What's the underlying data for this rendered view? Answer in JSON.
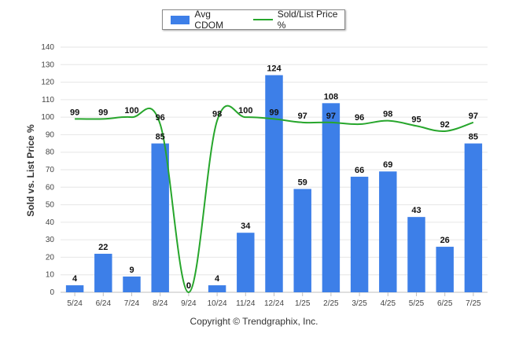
{
  "chart_data": {
    "type": "bar",
    "categories": [
      "5/24",
      "6/24",
      "7/24",
      "8/24",
      "9/24",
      "10/24",
      "11/24",
      "12/24",
      "1/25",
      "2/25",
      "3/25",
      "4/25",
      "5/25",
      "6/25",
      "7/25"
    ],
    "series": [
      {
        "name": "Avg CDOM",
        "type": "bar",
        "color": "#3d7fe8",
        "values": [
          4,
          22,
          9,
          85,
          0,
          4,
          34,
          124,
          59,
          108,
          66,
          69,
          43,
          26,
          85
        ]
      },
      {
        "name": "Sold/List Price %",
        "type": "line",
        "color": "#27a62c",
        "values": [
          99,
          99,
          100,
          96,
          0,
          98,
          100,
          99,
          97,
          97,
          96,
          98,
          95,
          92,
          97
        ]
      }
    ],
    "ylabel": "Sold vs. List Price %",
    "ylim": [
      0,
      140
    ],
    "yticks": [
      0,
      10,
      20,
      30,
      40,
      50,
      60,
      70,
      80,
      90,
      100,
      110,
      120,
      130,
      140
    ],
    "grid": true,
    "legend_position": "top-center"
  },
  "footer": {
    "copyright": "Copyright © Trendgraphix, Inc."
  }
}
